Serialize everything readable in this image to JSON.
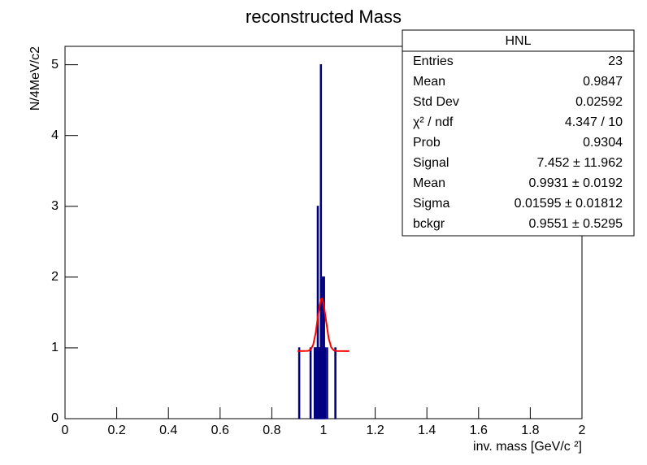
{
  "chart_data": {
    "type": "histogram",
    "title": "reconstructed Mass",
    "x_label": "inv. mass  [GeV/c ²]",
    "y_label": "N/4MeV/c2",
    "bins": [
      0.904,
      0.908,
      0.912,
      0.916,
      0.92,
      0.924,
      0.928,
      0.932,
      0.936,
      0.94,
      0.944,
      0.948,
      0.952,
      0.956,
      0.96,
      0.964,
      0.968,
      0.972,
      0.976,
      0.98,
      0.984,
      0.988,
      0.992,
      0.996,
      1.0,
      1.004,
      1.008,
      1.012,
      1.016,
      1.02,
      1.024,
      1.028,
      1.032,
      1.036,
      1.04,
      1.044,
      1.048
    ],
    "values": [
      1,
      0,
      0,
      0,
      0,
      0,
      0,
      0,
      0,
      0,
      0,
      1,
      0,
      0,
      0,
      1,
      1,
      1,
      3,
      1,
      1,
      5,
      1,
      2,
      2,
      1,
      0,
      1,
      0,
      0,
      0,
      0,
      0,
      0,
      0,
      1
    ],
    "color": "#000080",
    "fit": {
      "color": "#ff0000",
      "x": [
        0.9,
        0.94,
        0.95,
        0.96,
        0.97,
        0.98,
        0.99,
        0.995,
        1.0,
        1.01,
        1.02,
        1.03,
        1.04,
        1.05,
        1.1
      ],
      "y": [
        0.955,
        0.958,
        0.974,
        1.042,
        1.216,
        1.487,
        1.686,
        1.695,
        1.634,
        1.38,
        1.135,
        1.006,
        0.965,
        0.956,
        0.955
      ]
    },
    "xlim": [
      0,
      2
    ],
    "ylim": [
      0,
      5.26
    ],
    "xticks": [
      0,
      0.2,
      0.4,
      0.6,
      0.8,
      1,
      1.2,
      1.4,
      1.6,
      1.8,
      2
    ],
    "yticks": [
      0,
      1,
      2,
      3,
      4,
      5
    ]
  },
  "stats_box": {
    "title": "HNL",
    "rows": [
      [
        "Entries",
        "23"
      ],
      [
        "Mean",
        "0.9847"
      ],
      [
        "Std Dev",
        "0.02592"
      ],
      [
        "χ² / ndf",
        "4.347 / 10"
      ],
      [
        "Prob",
        "0.9304"
      ],
      [
        "Signal",
        "7.452 ± 11.962"
      ],
      [
        "Mean",
        "0.9931 ± 0.0192"
      ],
      [
        "Sigma",
        "0.01595 ± 0.01812"
      ],
      [
        "bckgr",
        "0.9551 ± 0.5295"
      ]
    ]
  }
}
